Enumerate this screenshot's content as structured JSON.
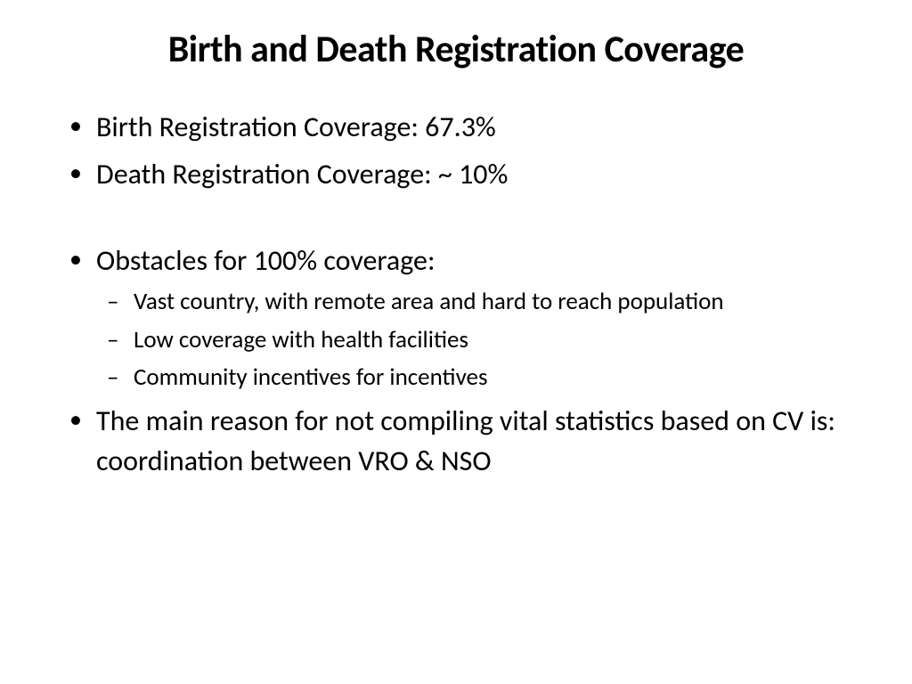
{
  "title": "Birth and Death Registration Coverage",
  "bullets": [
    {
      "text": "Birth Registration Coverage: 67.3%"
    },
    {
      "text": "Death Registration Coverage: ~ 10%"
    },
    {
      "text": "Obstacles  for 100% coverage:",
      "sub": [
        "Vast country, with remote area and hard to reach population",
        "Low coverage with health facilities",
        "Community incentives for incentives"
      ]
    },
    {
      "text": "The main reason for not compiling vital statistics based on CV is: coordination between VRO & NSO"
    }
  ],
  "styling": {
    "background_color": "#ffffff",
    "text_color": "#000000",
    "title_fontsize": 42,
    "title_fontweight": "bold",
    "bullet_fontsize": 32,
    "subbullet_fontsize": 27,
    "font_family": "Calibri"
  }
}
